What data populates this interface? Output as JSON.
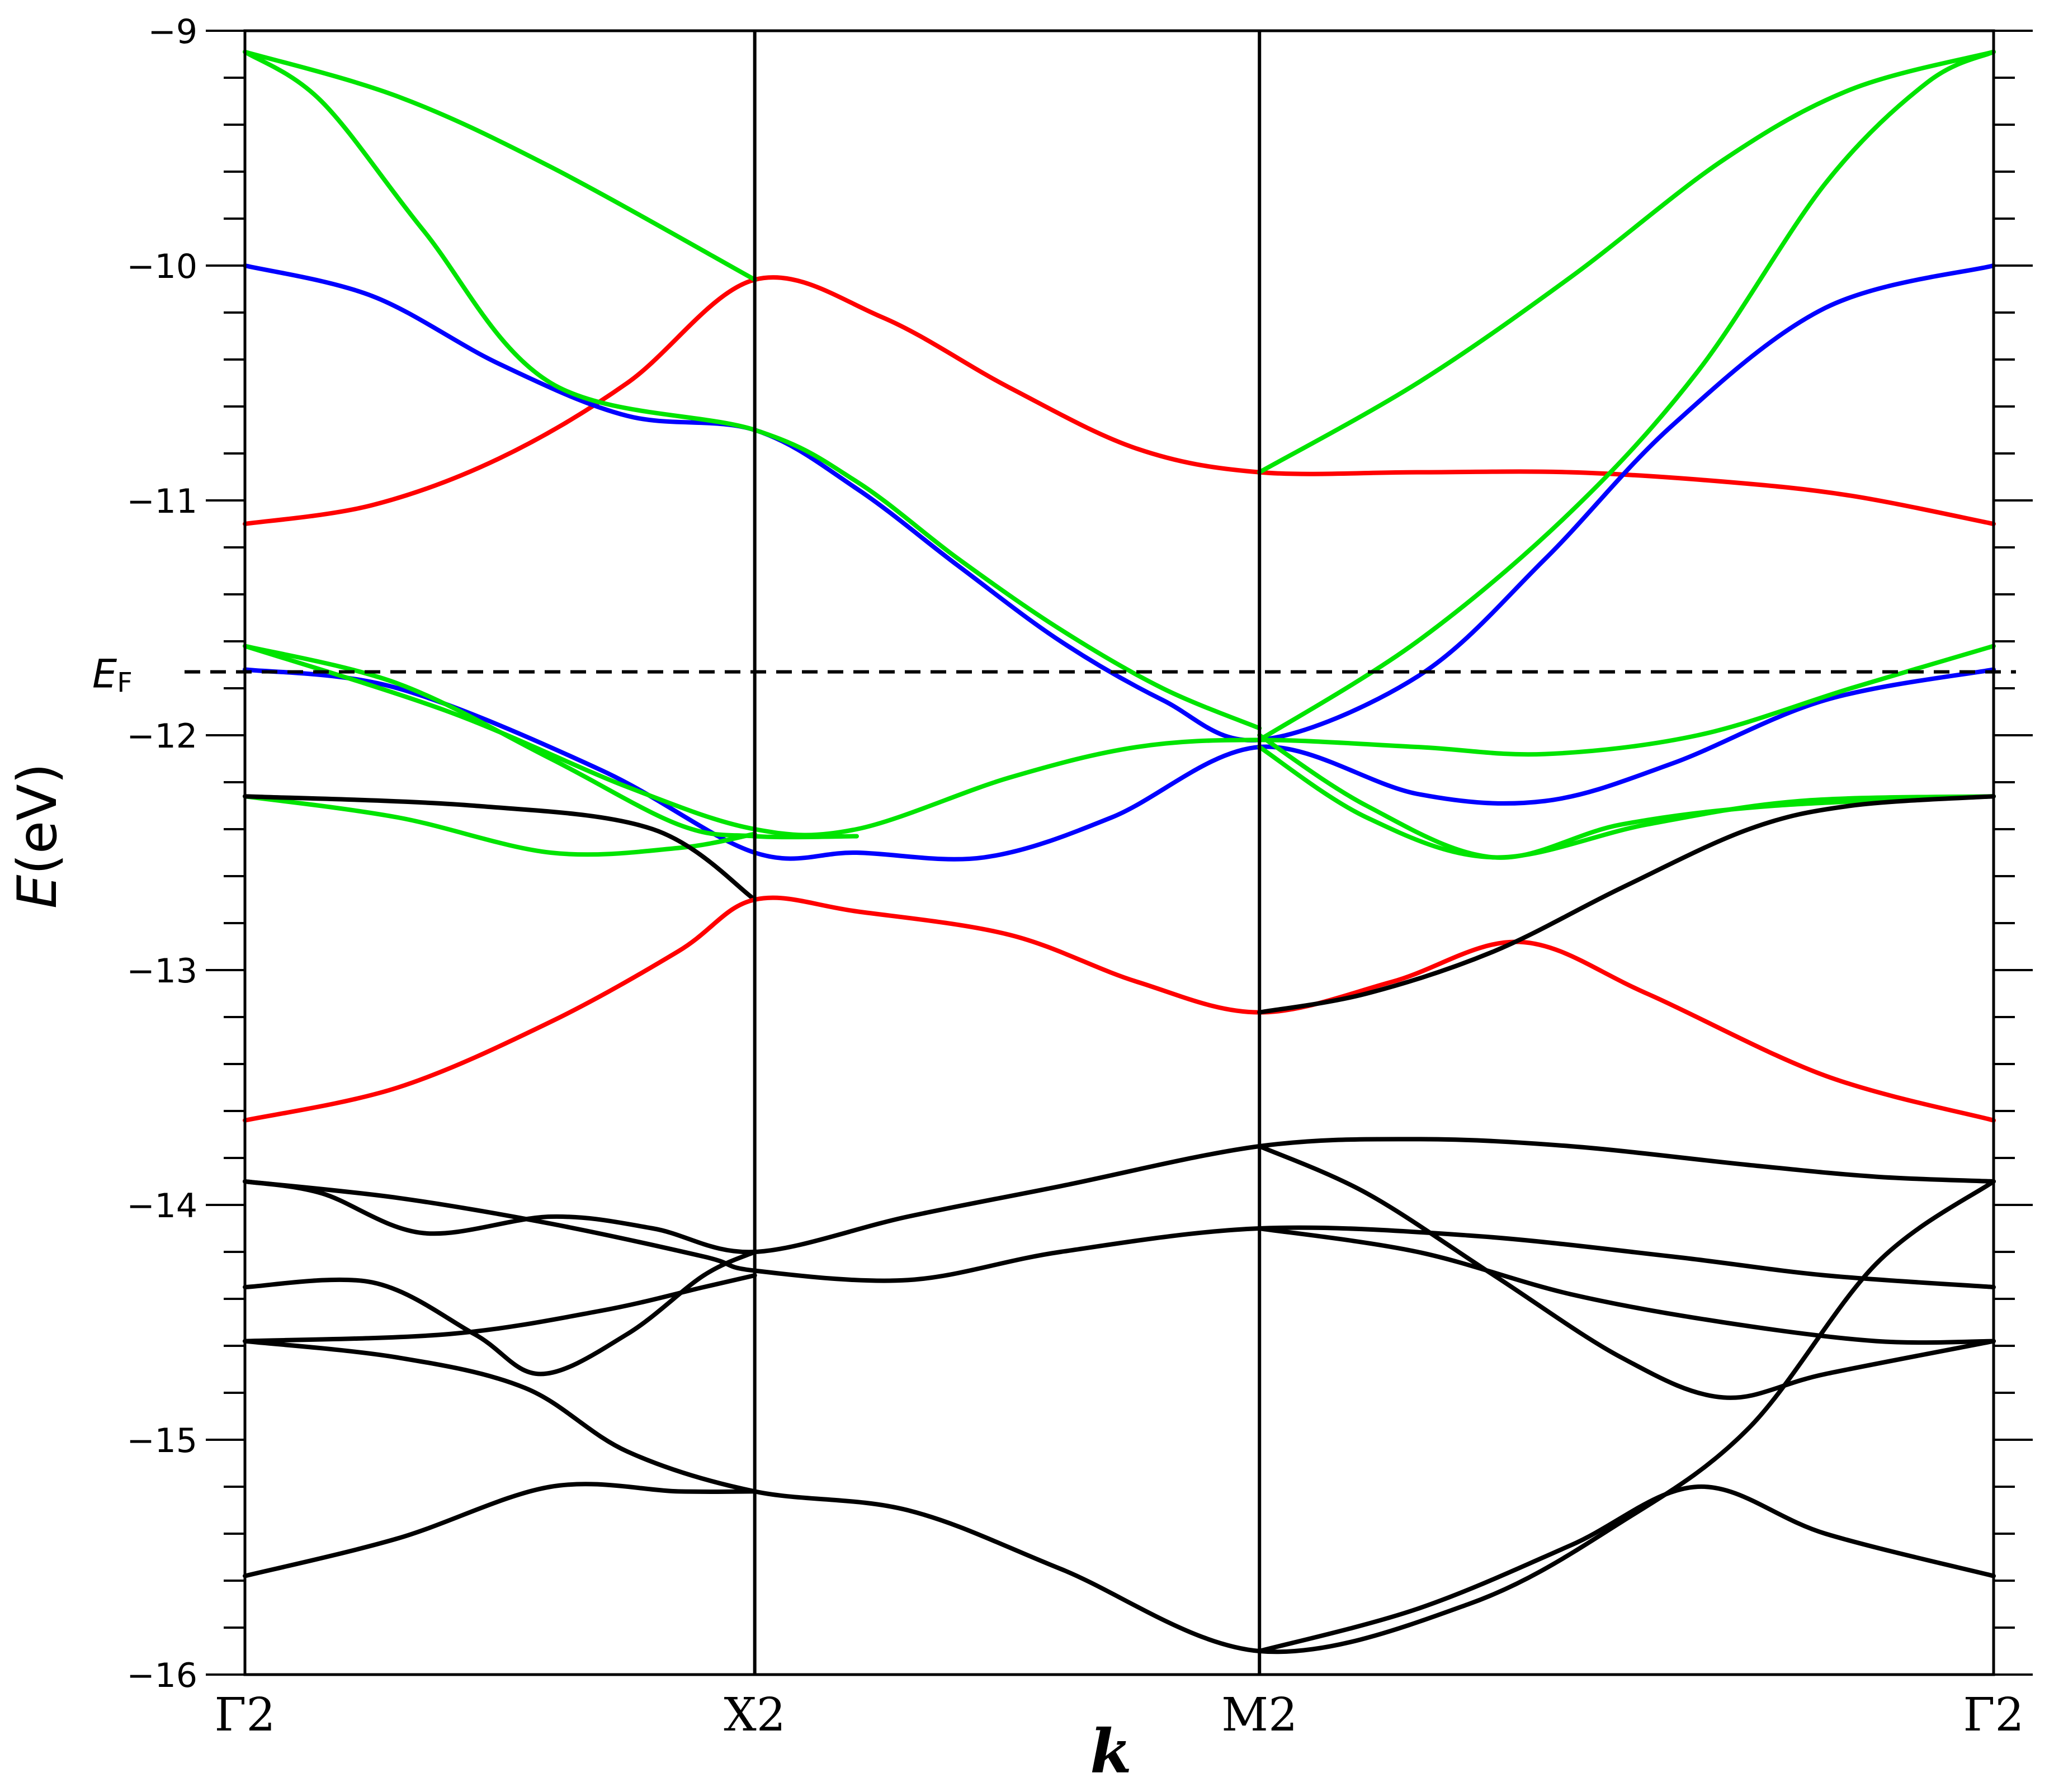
{
  "chart_data": {
    "type": "line",
    "title": "",
    "xlabel": "k",
    "ylabel": {
      "symbol": "E",
      "unit": "(eV)"
    },
    "ylim": [
      -16,
      -9
    ],
    "yticks": [
      -16,
      -15,
      -14,
      -13,
      -12,
      -11,
      -10,
      -9
    ],
    "ytick_labels": [
      "−16",
      "−15",
      "−14",
      "−13",
      "−12",
      "−11",
      "−10",
      "−9"
    ],
    "y_minor_step": 0.2,
    "xlim": [
      0,
      3.43
    ],
    "k_points": [
      {
        "label": "Γ2",
        "k": 0
      },
      {
        "label": "X2",
        "k": 1
      },
      {
        "label": "M2",
        "k": 1.99
      },
      {
        "label": "Γ2",
        "k": 3.43
      }
    ],
    "fermi_level": {
      "value": -11.73,
      "label_main": "E",
      "label_sub": "F"
    },
    "grid": false,
    "legend": "none",
    "colors": {
      "black": "#000000",
      "red": "#ff0000",
      "green": "#00e400",
      "blue": "#0000ff"
    },
    "series": [
      {
        "color": "red",
        "points": [
          [
            0,
            -11.1
          ],
          [
            0.25,
            -11.02
          ],
          [
            0.5,
            -10.82
          ],
          [
            0.75,
            -10.5
          ],
          [
            1,
            -10.06
          ],
          [
            1.25,
            -10.22
          ],
          [
            1.5,
            -10.52
          ],
          [
            1.75,
            -10.78
          ],
          [
            1.99,
            -10.88
          ],
          [
            2.3,
            -10.88
          ],
          [
            2.6,
            -10.88
          ],
          [
            2.9,
            -10.92
          ],
          [
            3.15,
            -10.98
          ],
          [
            3.43,
            -11.1
          ]
        ]
      },
      {
        "color": "blue",
        "points": [
          [
            0,
            -10
          ],
          [
            0.25,
            -10.13
          ],
          [
            0.5,
            -10.42
          ],
          [
            0.75,
            -10.64
          ],
          [
            1,
            -10.7
          ],
          [
            1.2,
            -10.95
          ],
          [
            1.4,
            -11.28
          ],
          [
            1.6,
            -11.6
          ],
          [
            1.8,
            -11.85
          ],
          [
            1.99,
            -12.02
          ],
          [
            2.3,
            -11.75
          ],
          [
            2.55,
            -11.25
          ],
          [
            2.8,
            -10.68
          ],
          [
            3.1,
            -10.18
          ],
          [
            3.43,
            -10
          ]
        ]
      },
      {
        "color": "green",
        "points": [
          [
            0,
            -9.09
          ],
          [
            0.3,
            -9.28
          ],
          [
            0.6,
            -9.58
          ],
          [
            1,
            -10.06
          ]
        ]
      },
      {
        "color": "green",
        "points": [
          [
            0,
            -9.09
          ],
          [
            0.15,
            -9.3
          ],
          [
            0.35,
            -9.85
          ],
          [
            0.6,
            -10.5
          ],
          [
            1,
            -10.7
          ],
          [
            1.2,
            -10.92
          ],
          [
            1.4,
            -11.25
          ],
          [
            1.6,
            -11.55
          ],
          [
            1.8,
            -11.8
          ],
          [
            1.99,
            -11.97
          ]
        ]
      },
      {
        "color": "green",
        "points": [
          [
            1.99,
            -10.88
          ],
          [
            2.3,
            -10.5
          ],
          [
            2.6,
            -10.05
          ],
          [
            2.9,
            -9.55
          ],
          [
            3.15,
            -9.25
          ],
          [
            3.43,
            -9.09
          ]
        ]
      },
      {
        "color": "green",
        "points": [
          [
            1.99,
            -12.02
          ],
          [
            2.3,
            -11.6
          ],
          [
            2.6,
            -11.05
          ],
          [
            2.85,
            -10.45
          ],
          [
            3.1,
            -9.65
          ],
          [
            3.3,
            -9.22
          ],
          [
            3.43,
            -9.09
          ]
        ]
      },
      {
        "color": "blue",
        "points": [
          [
            0,
            -11.72
          ],
          [
            0.3,
            -11.8
          ],
          [
            0.7,
            -12.15
          ],
          [
            1,
            -12.5
          ],
          [
            1.2,
            -12.5
          ],
          [
            1.45,
            -12.52
          ],
          [
            1.7,
            -12.35
          ],
          [
            1.99,
            -12.05
          ],
          [
            2.3,
            -12.25
          ],
          [
            2.55,
            -12.28
          ],
          [
            2.8,
            -12.12
          ],
          [
            3.1,
            -11.85
          ],
          [
            3.43,
            -11.72
          ]
        ]
      },
      {
        "color": "green",
        "points": [
          [
            0,
            -11.62
          ],
          [
            0.4,
            -11.9
          ],
          [
            0.75,
            -12.22
          ],
          [
            1,
            -12.4
          ],
          [
            1.2,
            -12.4
          ],
          [
            1.5,
            -12.18
          ],
          [
            1.75,
            -12.05
          ],
          [
            1.99,
            -12.02
          ],
          [
            2.3,
            -12.05
          ],
          [
            2.55,
            -12.08
          ],
          [
            2.85,
            -12
          ],
          [
            3.15,
            -11.8
          ],
          [
            3.43,
            -11.62
          ]
        ]
      },
      {
        "color": "green",
        "points": [
          [
            0,
            -11.62
          ],
          [
            0.3,
            -11.78
          ],
          [
            0.6,
            -12.1
          ],
          [
            0.85,
            -12.38
          ],
          [
            1,
            -12.43
          ],
          [
            1.2,
            -12.43
          ]
        ]
      },
      {
        "color": "green",
        "points": [
          [
            0,
            -12.26
          ],
          [
            0.3,
            -12.35
          ],
          [
            0.6,
            -12.5
          ],
          [
            0.85,
            -12.48
          ],
          [
            1,
            -12.42
          ]
        ]
      },
      {
        "color": "green",
        "points": [
          [
            1.99,
            -12.05
          ],
          [
            2.2,
            -12.35
          ],
          [
            2.45,
            -12.52
          ],
          [
            2.75,
            -12.38
          ],
          [
            3.05,
            -12.28
          ],
          [
            3.43,
            -12.26
          ]
        ]
      },
      {
        "color": "green",
        "points": [
          [
            1.99,
            -12.0
          ],
          [
            2.2,
            -12.3
          ],
          [
            2.45,
            -12.52
          ],
          [
            2.7,
            -12.38
          ],
          [
            3.0,
            -12.3
          ],
          [
            3.43,
            -12.26
          ]
        ]
      },
      {
        "color": "black",
        "points": [
          [
            0,
            -12.26
          ],
          [
            0.45,
            -12.3
          ],
          [
            0.8,
            -12.4
          ],
          [
            1,
            -12.7
          ]
        ]
      },
      {
        "color": "red",
        "points": [
          [
            0,
            -13.64
          ],
          [
            0.3,
            -13.5
          ],
          [
            0.6,
            -13.22
          ],
          [
            0.85,
            -12.92
          ],
          [
            1,
            -12.7
          ],
          [
            1.2,
            -12.75
          ],
          [
            1.5,
            -12.85
          ],
          [
            1.75,
            -13.05
          ],
          [
            1.99,
            -13.18
          ],
          [
            2.25,
            -13.05
          ],
          [
            2.5,
            -12.88
          ],
          [
            2.75,
            -13.1
          ],
          [
            3.1,
            -13.45
          ],
          [
            3.43,
            -13.64
          ]
        ]
      },
      {
        "color": "black",
        "points": [
          [
            1.99,
            -13.18
          ],
          [
            2.2,
            -13.1
          ],
          [
            2.45,
            -12.92
          ],
          [
            2.7,
            -12.65
          ],
          [
            2.95,
            -12.4
          ],
          [
            3.15,
            -12.3
          ],
          [
            3.43,
            -12.26
          ]
        ]
      },
      {
        "color": "black",
        "points": [
          [
            0,
            -13.9
          ],
          [
            0.15,
            -13.95
          ],
          [
            0.35,
            -14.12
          ],
          [
            0.6,
            -14.05
          ],
          [
            0.8,
            -14.1
          ],
          [
            1,
            -14.2
          ],
          [
            1.3,
            -14.05
          ],
          [
            1.6,
            -13.92
          ],
          [
            1.99,
            -13.75
          ],
          [
            2.3,
            -13.72
          ],
          [
            2.6,
            -13.75
          ],
          [
            2.95,
            -13.83
          ],
          [
            3.2,
            -13.88
          ],
          [
            3.43,
            -13.9
          ]
        ]
      },
      {
        "color": "black",
        "points": [
          [
            0,
            -13.9
          ],
          [
            0.3,
            -13.97
          ],
          [
            0.6,
            -14.08
          ],
          [
            0.9,
            -14.22
          ],
          [
            1,
            -14.28
          ],
          [
            1.3,
            -14.32
          ],
          [
            1.6,
            -14.2
          ],
          [
            1.99,
            -14.1
          ],
          [
            2.4,
            -14.13
          ],
          [
            2.8,
            -14.22
          ],
          [
            3.1,
            -14.3
          ],
          [
            3.43,
            -14.35
          ]
        ]
      },
      {
        "color": "black",
        "points": [
          [
            0,
            -14.35
          ],
          [
            0.25,
            -14.33
          ],
          [
            0.45,
            -14.55
          ],
          [
            0.58,
            -14.72
          ],
          [
            0.75,
            -14.55
          ],
          [
            0.9,
            -14.3
          ],
          [
            1,
            -14.2
          ]
        ]
      },
      {
        "color": "black",
        "points": [
          [
            0,
            -14.58
          ],
          [
            0.4,
            -14.55
          ],
          [
            0.7,
            -14.45
          ],
          [
            0.9,
            -14.35
          ],
          [
            1,
            -14.3
          ]
        ]
      },
      {
        "color": "black",
        "points": [
          [
            0,
            -14.58
          ],
          [
            0.3,
            -14.65
          ],
          [
            0.55,
            -14.78
          ],
          [
            0.75,
            -15.05
          ],
          [
            1,
            -15.22
          ],
          [
            1.3,
            -15.3
          ],
          [
            1.6,
            -15.55
          ],
          [
            1.99,
            -15.9
          ],
          [
            2.4,
            -15.7
          ],
          [
            2.7,
            -15.35
          ],
          [
            2.95,
            -14.95
          ],
          [
            3.2,
            -14.25
          ],
          [
            3.43,
            -13.9
          ]
        ]
      },
      {
        "color": "black",
        "points": [
          [
            0,
            -15.58
          ],
          [
            0.3,
            -15.42
          ],
          [
            0.6,
            -15.2
          ],
          [
            0.85,
            -15.22
          ],
          [
            1,
            -15.22
          ]
        ]
      },
      {
        "color": "black",
        "points": [
          [
            1.99,
            -15.9
          ],
          [
            2.3,
            -15.72
          ],
          [
            2.6,
            -15.45
          ],
          [
            2.85,
            -15.2
          ],
          [
            3.1,
            -15.4
          ],
          [
            3.43,
            -15.58
          ]
        ]
      },
      {
        "color": "black",
        "points": [
          [
            1.99,
            -13.75
          ],
          [
            2.2,
            -13.95
          ],
          [
            2.45,
            -14.3
          ],
          [
            2.7,
            -14.65
          ],
          [
            2.9,
            -14.82
          ],
          [
            3.1,
            -14.72
          ],
          [
            3.43,
            -14.58
          ]
        ]
      },
      {
        "color": "black",
        "points": [
          [
            1.99,
            -14.1
          ],
          [
            2.3,
            -14.2
          ],
          [
            2.6,
            -14.38
          ],
          [
            2.9,
            -14.5
          ],
          [
            3.2,
            -14.58
          ],
          [
            3.43,
            -14.58
          ]
        ]
      }
    ]
  }
}
